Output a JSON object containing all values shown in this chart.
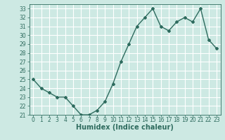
{
  "x": [
    0,
    1,
    2,
    3,
    4,
    5,
    6,
    7,
    8,
    9,
    10,
    11,
    12,
    13,
    14,
    15,
    16,
    17,
    18,
    19,
    20,
    21,
    22,
    23
  ],
  "y": [
    25,
    24,
    23.5,
    23,
    23,
    22,
    21,
    21,
    21.5,
    22.5,
    24.5,
    27,
    29,
    31,
    32,
    33,
    31,
    30.5,
    31.5,
    32,
    31.5,
    33,
    29.5,
    28.5
  ],
  "line_color": "#2e6b5e",
  "marker": "D",
  "marker_size": 2,
  "bg_color": "#cde9e3",
  "grid_color": "#ffffff",
  "xlabel": "Humidex (Indice chaleur)",
  "ylim": [
    21,
    33.5
  ],
  "yticks": [
    21,
    22,
    23,
    24,
    25,
    26,
    27,
    28,
    29,
    30,
    31,
    32,
    33
  ],
  "xlim": [
    -0.5,
    23.5
  ],
  "xticks": [
    0,
    1,
    2,
    3,
    4,
    5,
    6,
    7,
    8,
    9,
    10,
    11,
    12,
    13,
    14,
    15,
    16,
    17,
    18,
    19,
    20,
    21,
    22,
    23
  ],
  "tick_label_fontsize": 5.5,
  "xlabel_fontsize": 7,
  "line_width": 1.0
}
